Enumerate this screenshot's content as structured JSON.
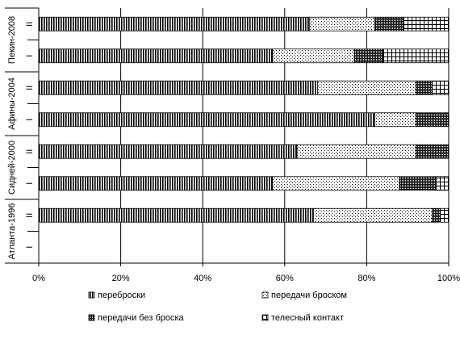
{
  "chart_data": {
    "type": "bar",
    "orientation": "horizontal",
    "stacked": "percent",
    "title": "",
    "xlabel": "",
    "ylabel": "",
    "xlim": [
      0,
      100
    ],
    "x_ticks": [
      "0%",
      "20%",
      "40%",
      "60%",
      "80%",
      "100%"
    ],
    "groups": [
      {
        "name": "Пекин-2008",
        "rows": [
          "II",
          "I"
        ]
      },
      {
        "name": "Афины-2004",
        "rows": [
          "II",
          "I"
        ]
      },
      {
        "name": "Сидней-2000",
        "rows": [
          "II",
          "I"
        ]
      },
      {
        "name": "Атланта-1996",
        "rows": [
          "II",
          "I"
        ]
      }
    ],
    "categories": [
      "Пекин-2008 II",
      "Пекин-2008 I",
      "Афины-2004 II",
      "Афины-2004 I",
      "Сидней-2000 II",
      "Сидней-2000 I",
      "Атланта-1996 II",
      "Атланта-1996 I"
    ],
    "series": [
      {
        "name": "переброски",
        "pattern": "vertical-stripes",
        "values": [
          66,
          57,
          68,
          82,
          63,
          57,
          67,
          null
        ]
      },
      {
        "name": "передачи броском",
        "pattern": "dots",
        "values": [
          16,
          20,
          24,
          10,
          29,
          31,
          29,
          null
        ]
      },
      {
        "name": "передачи без броска",
        "pattern": "dense-check",
        "values": [
          7,
          7,
          4,
          8,
          8,
          9,
          2,
          null
        ]
      },
      {
        "name": "телесный контакт",
        "pattern": "grid",
        "values": [
          11,
          16,
          4,
          0,
          0,
          3,
          2,
          null
        ]
      }
    ],
    "grid": true,
    "legend_position": "bottom"
  }
}
